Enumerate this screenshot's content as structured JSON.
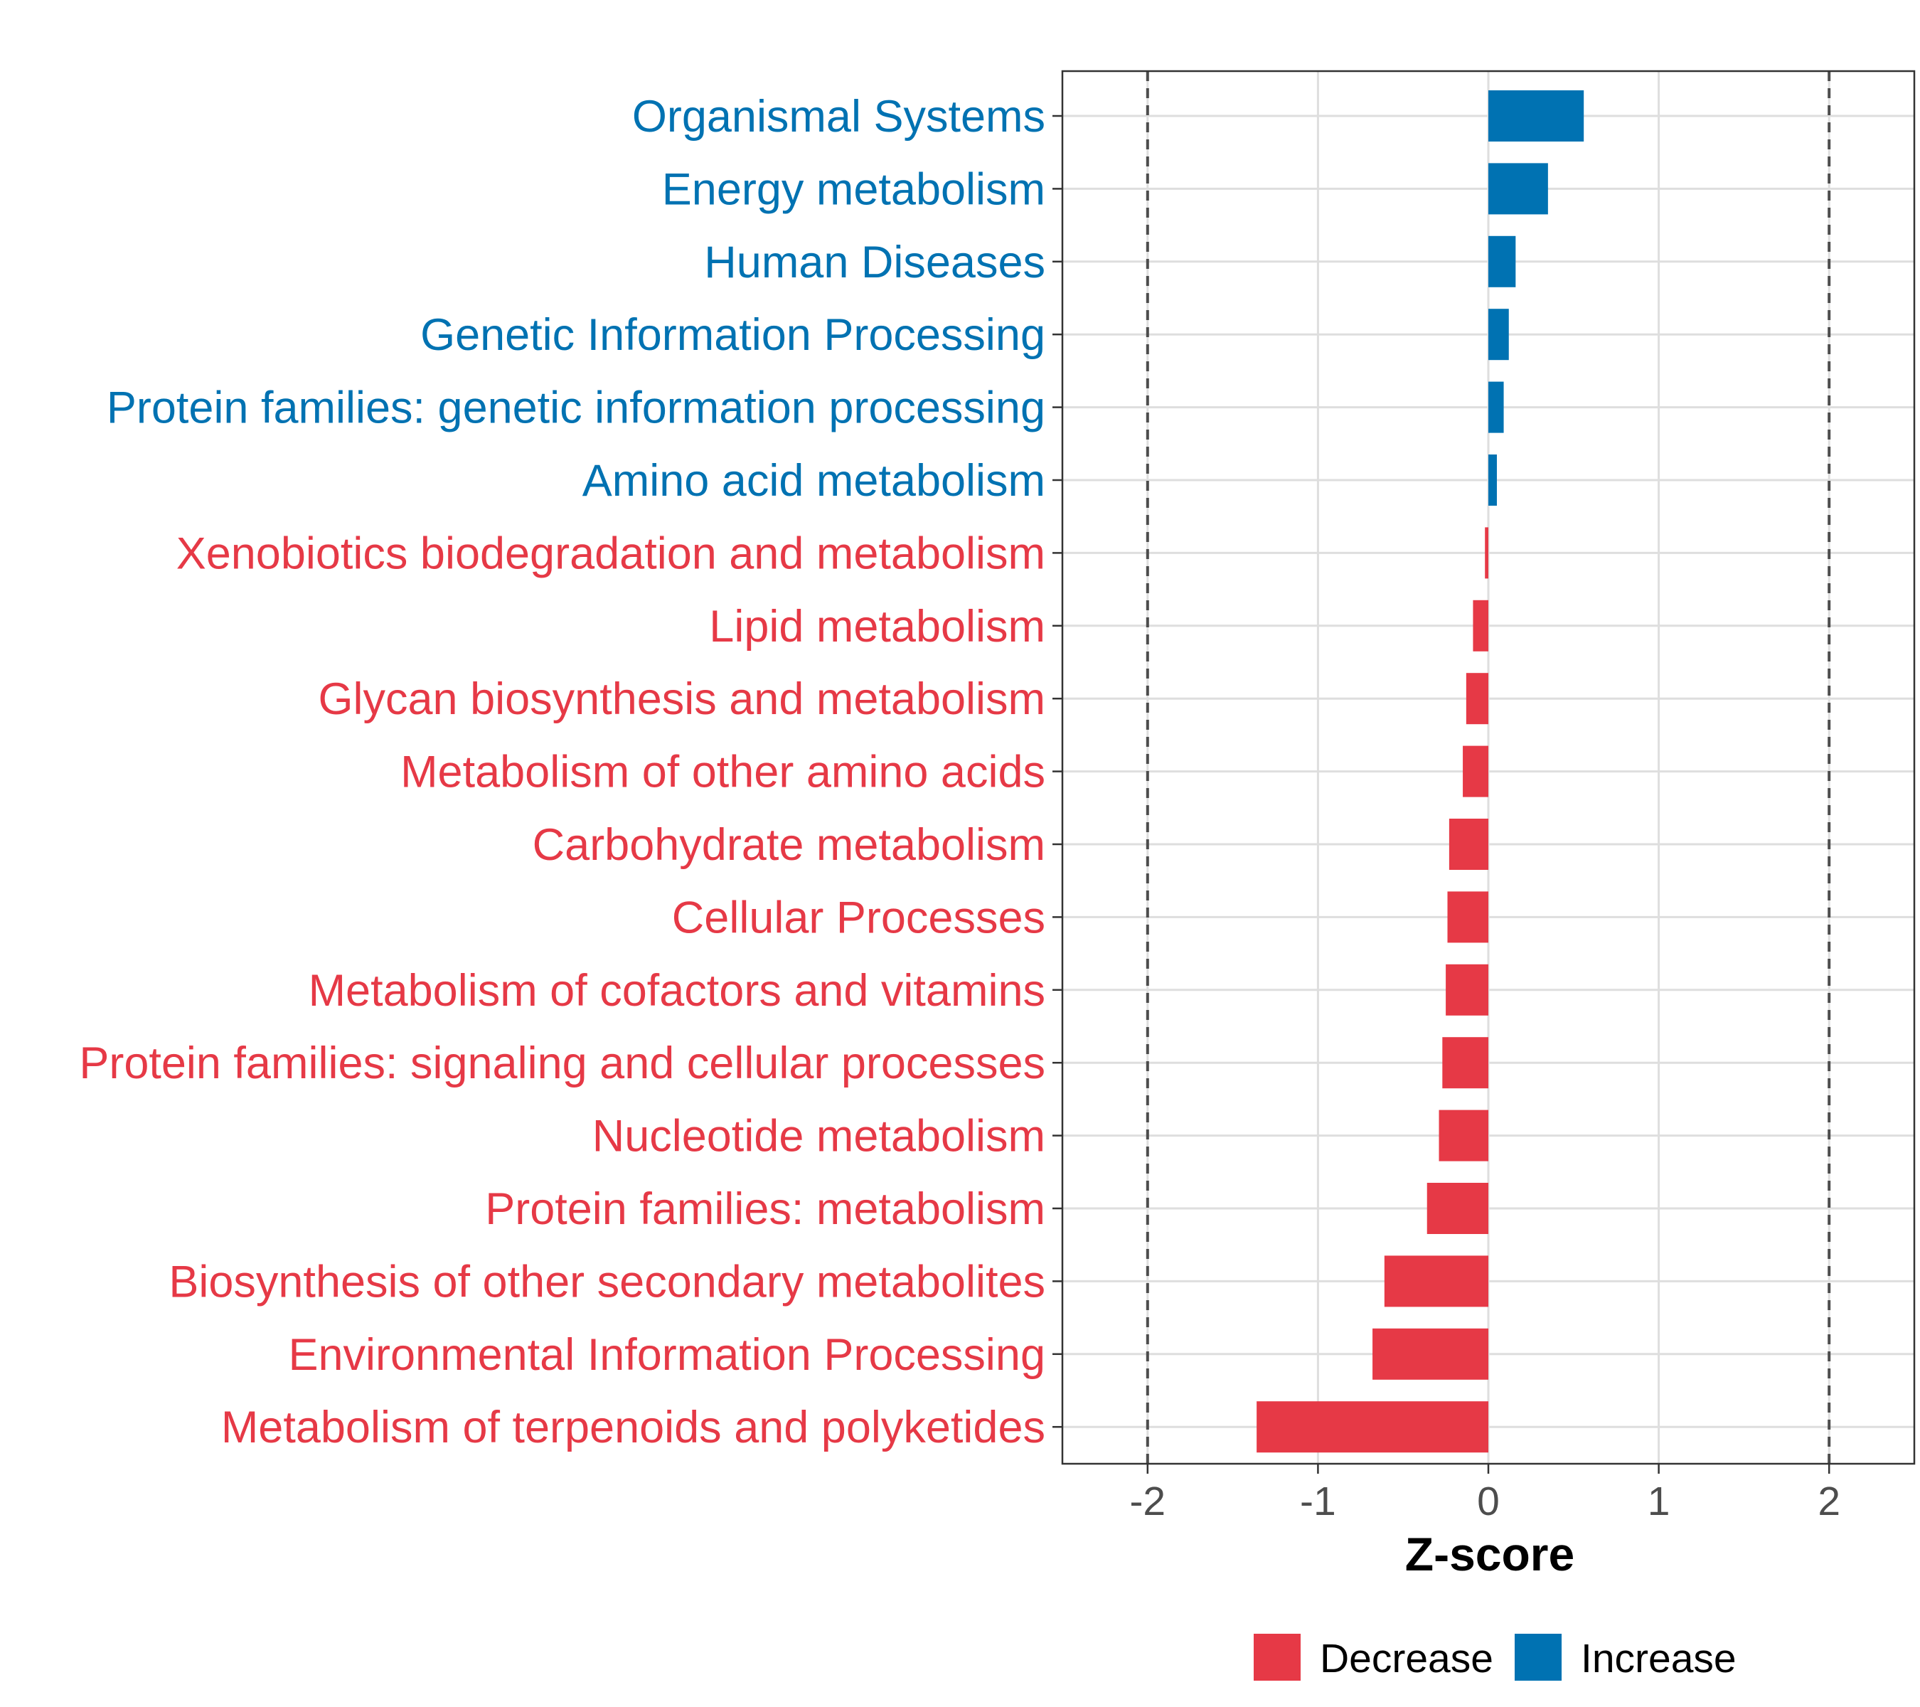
{
  "colors": {
    "decrease": "#e63946",
    "increase": "#0072b2"
  },
  "chart_data": {
    "type": "bar",
    "orientation": "horizontal",
    "xlabel": "Z-score",
    "xlim": [
      -2.5,
      2.5
    ],
    "xticks": [
      -2,
      -1,
      0,
      1,
      2
    ],
    "xtick_labels": [
      "-2",
      "-1",
      "0",
      "1",
      "2"
    ],
    "reference_lines": [
      -2,
      2
    ],
    "grid": true,
    "legend_position": "bottom",
    "legend": [
      {
        "label": "Decrease",
        "key": "decrease"
      },
      {
        "label": "Increase",
        "key": "increase"
      }
    ],
    "categories": [
      "Organismal Systems",
      "Energy metabolism",
      "Human Diseases",
      "Genetic Information Processing",
      "Protein families: genetic information processing",
      "Amino acid metabolism",
      "Xenobiotics biodegradation and metabolism",
      "Lipid metabolism",
      "Glycan biosynthesis and metabolism",
      "Metabolism of other amino acids",
      "Carbohydrate metabolism",
      "Cellular Processes",
      "Metabolism of cofactors and vitamins",
      "Protein families: signaling and cellular processes",
      "Nucleotide metabolism",
      "Protein families: metabolism",
      "Biosynthesis of other secondary metabolites",
      "Environmental Information Processing",
      "Metabolism of terpenoids and polyketides"
    ],
    "values": [
      0.56,
      0.35,
      0.16,
      0.12,
      0.09,
      0.05,
      -0.02,
      -0.09,
      -0.13,
      -0.15,
      -0.23,
      -0.24,
      -0.25,
      -0.27,
      -0.29,
      -0.36,
      -0.61,
      -0.68,
      -1.36
    ],
    "direction": [
      "increase",
      "increase",
      "increase",
      "increase",
      "increase",
      "increase",
      "decrease",
      "decrease",
      "decrease",
      "decrease",
      "decrease",
      "decrease",
      "decrease",
      "decrease",
      "decrease",
      "decrease",
      "decrease",
      "decrease",
      "decrease"
    ]
  }
}
